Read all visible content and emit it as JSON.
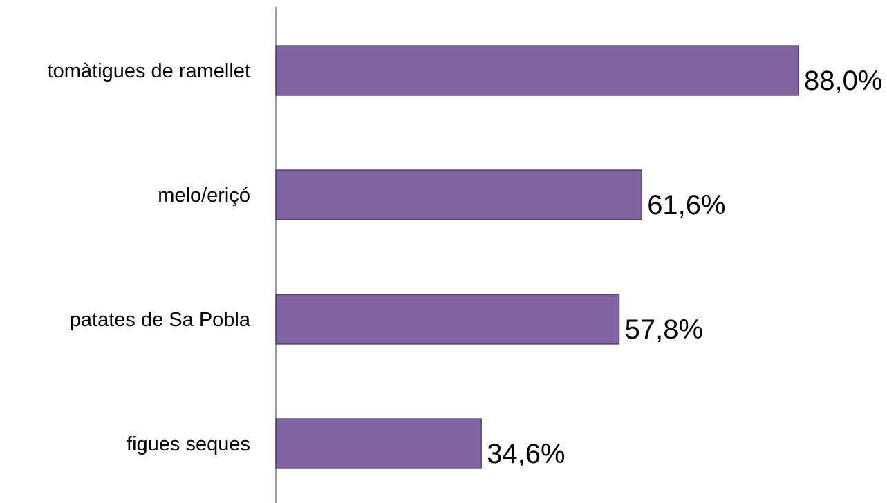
{
  "colors": {
    "bar_fill": "#8064A2",
    "bar_stroke": "#3f2f55",
    "axis": "#7f7f7f",
    "text": "#000000"
  },
  "chart_data": {
    "type": "bar",
    "orientation": "horizontal",
    "categories": [
      "tomàtigues de ramellet",
      "melo/eriçó",
      "patates de Sa Pobla",
      "figues seques"
    ],
    "values": [
      88.0,
      61.6,
      57.8,
      34.6
    ],
    "value_labels": [
      "88,0%",
      "61,6%",
      "57,8%",
      "34,6%"
    ],
    "xlim": [
      0,
      88.0
    ],
    "grid": false,
    "legend": "none"
  }
}
